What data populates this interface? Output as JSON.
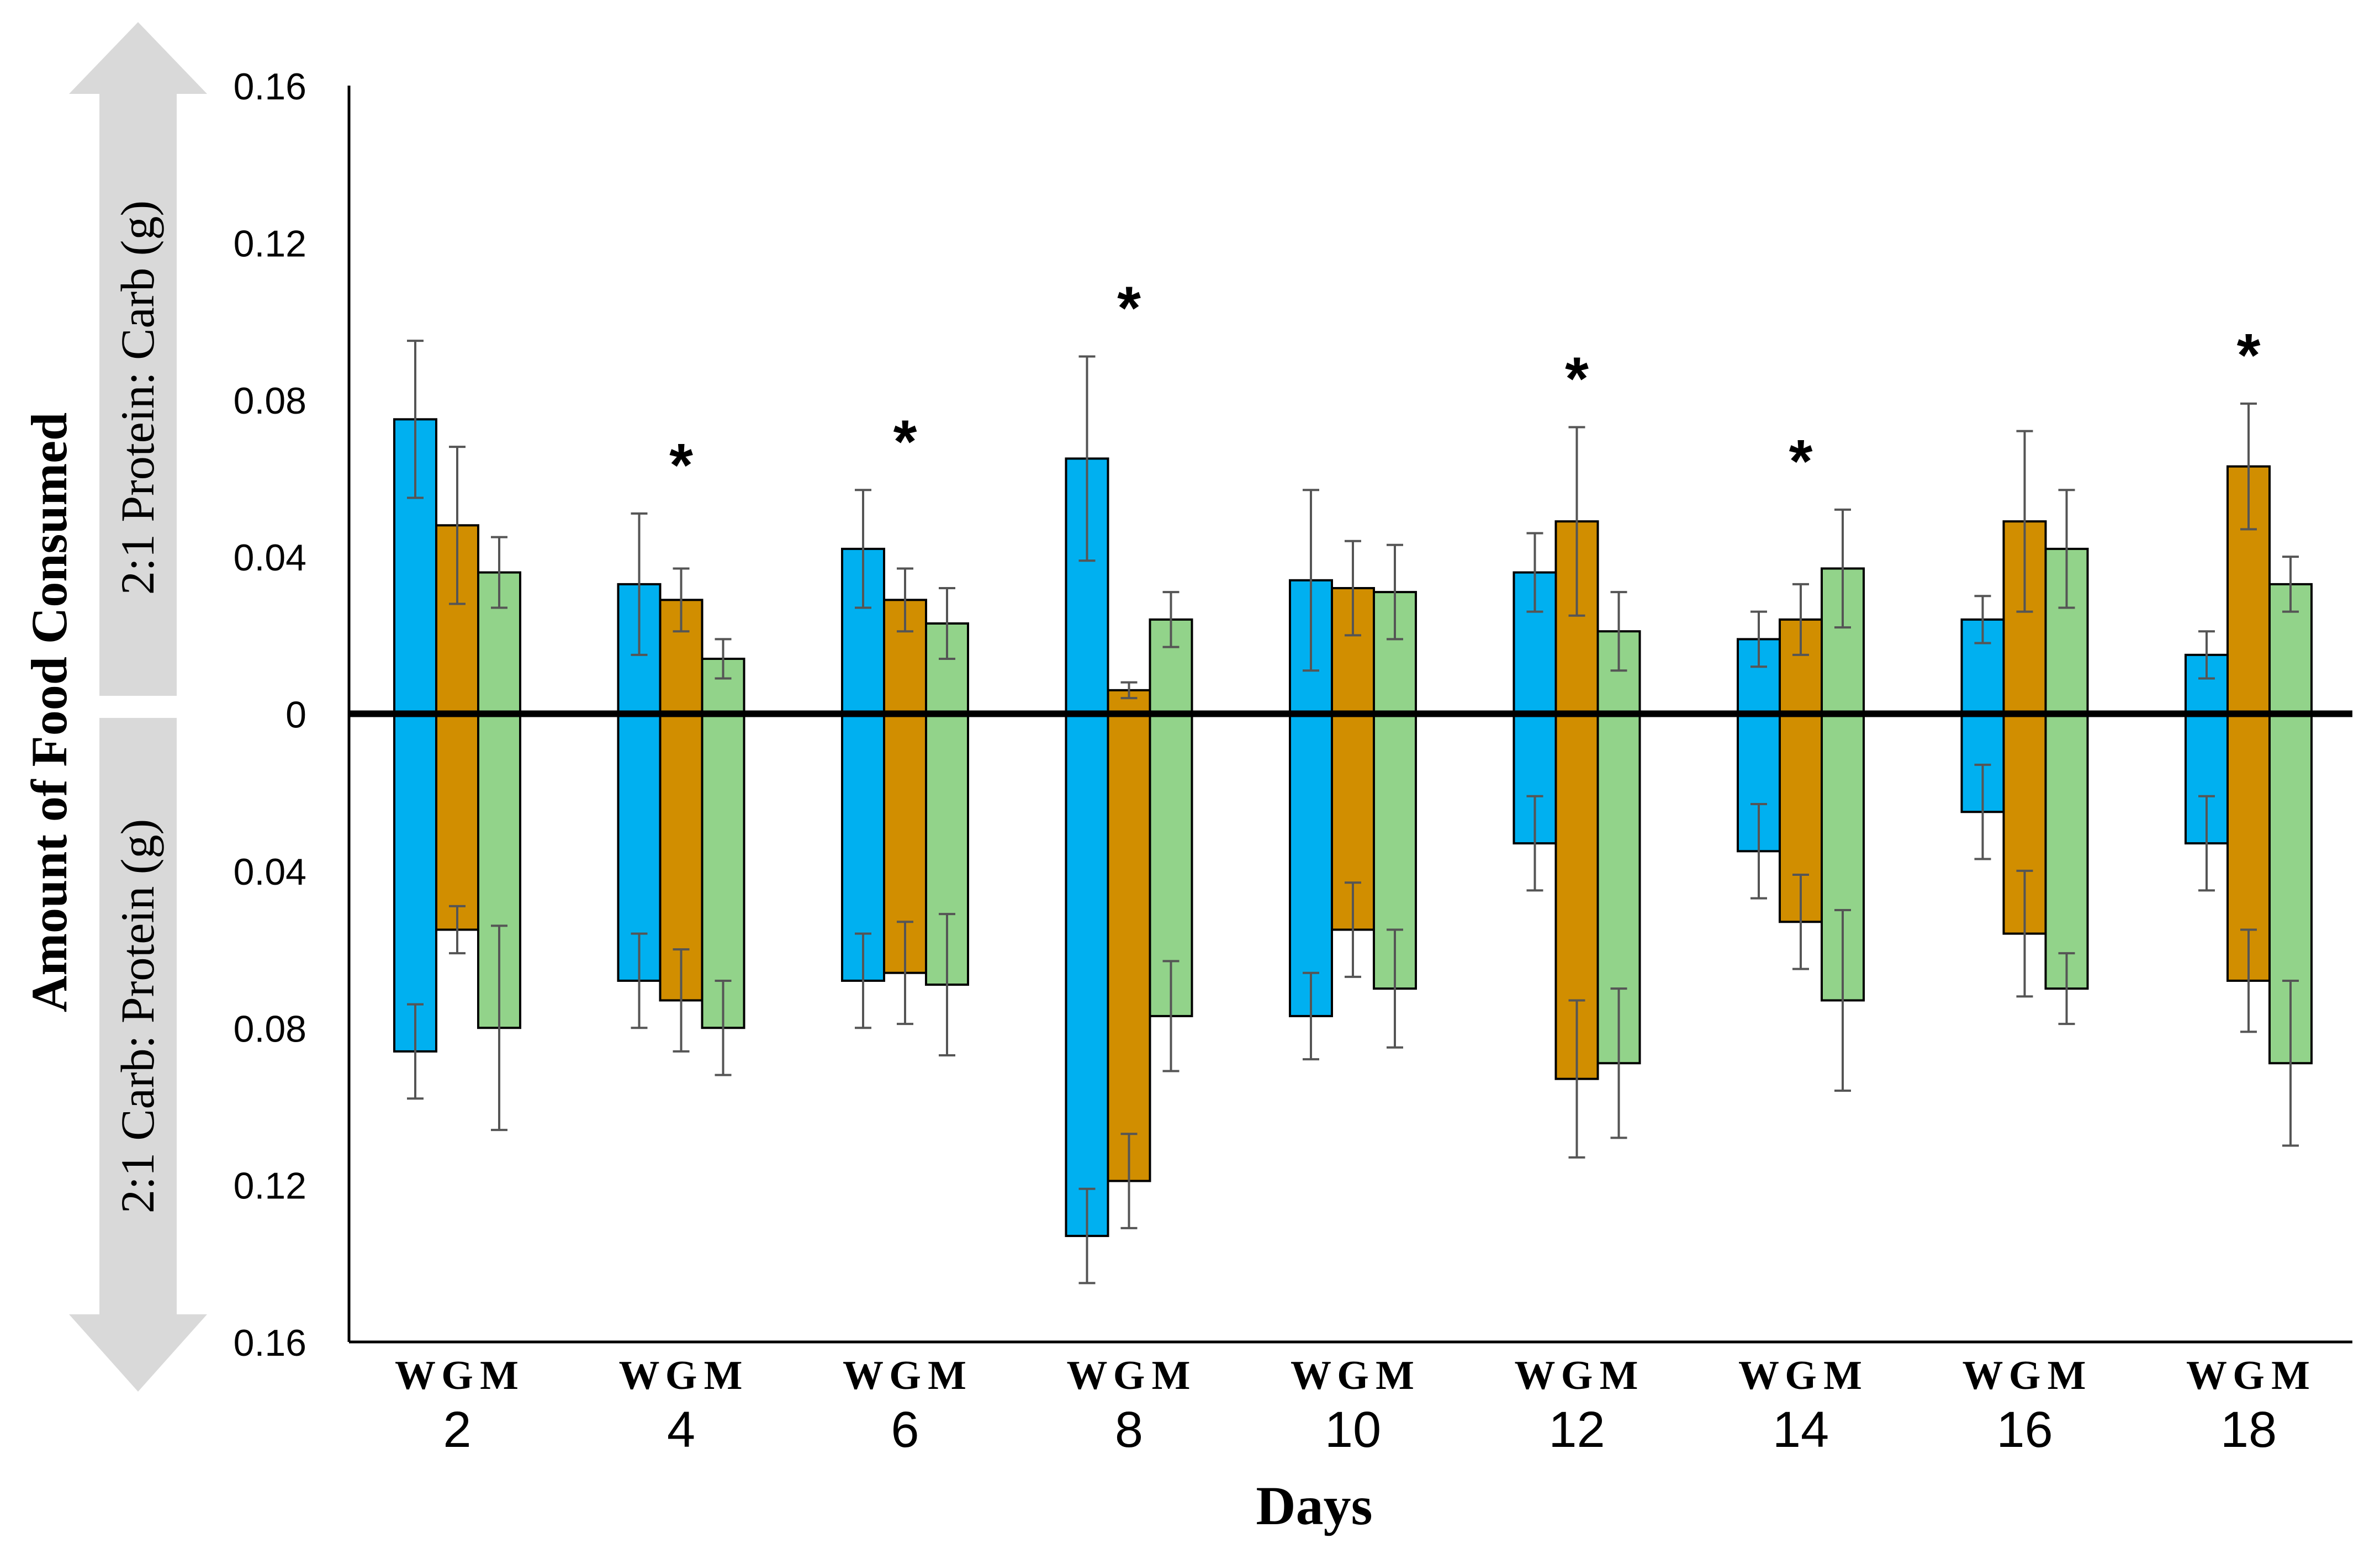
{
  "chart_data": {
    "type": "bar",
    "title": "",
    "xlabel": "Days",
    "ylabel": "Amount of Food Consumed",
    "ylabel_upper": "2:1 Protein: Carb (g)",
    "ylabel_lower": "2:1 Carb: Protein (g)",
    "ylim": [
      -0.16,
      0.16
    ],
    "yticks": [
      {
        "value": 0.16,
        "label": "0.16"
      },
      {
        "value": 0.12,
        "label": "0.12"
      },
      {
        "value": 0.08,
        "label": "0.08"
      },
      {
        "value": 0.04,
        "label": "0.04"
      },
      {
        "value": 0,
        "label": "0"
      },
      {
        "value": -0.04,
        "label": "0.04"
      },
      {
        "value": -0.08,
        "label": "0.08"
      },
      {
        "value": -0.12,
        "label": "0.12"
      },
      {
        "value": -0.16,
        "label": "0.16"
      }
    ],
    "categories": [
      "2",
      "4",
      "6",
      "8",
      "10",
      "12",
      "14",
      "16",
      "18"
    ],
    "group_letters": [
      "W",
      "G",
      "M"
    ],
    "colors": {
      "W": "#00b0f0",
      "G": "#d18e00",
      "M": "#92d38a",
      "outline": "#000000",
      "error": "#555555"
    },
    "significance_marker": "*",
    "significant": [
      false,
      true,
      true,
      true,
      false,
      true,
      true,
      false,
      true
    ],
    "series": [
      {
        "name": "W",
        "upper": [
          0.075,
          0.033,
          0.042,
          0.065,
          0.034,
          0.036,
          0.019,
          0.024,
          0.015
        ],
        "upper_err": [
          0.02,
          0.018,
          0.015,
          0.026,
          0.023,
          0.01,
          0.007,
          0.006,
          0.006
        ],
        "lower": [
          -0.086,
          -0.068,
          -0.068,
          -0.133,
          -0.077,
          -0.033,
          -0.035,
          -0.025,
          -0.033
        ],
        "lower_err": [
          0.012,
          0.012,
          0.012,
          0.012,
          0.011,
          0.012,
          0.012,
          0.012,
          0.012
        ]
      },
      {
        "name": "G",
        "upper": [
          0.048,
          0.029,
          0.029,
          0.006,
          0.032,
          0.049,
          0.024,
          0.049,
          0.063
        ],
        "upper_err": [
          0.02,
          0.008,
          0.008,
          0.002,
          0.012,
          0.024,
          0.009,
          0.023,
          0.016
        ],
        "lower": [
          -0.055,
          -0.073,
          -0.066,
          -0.119,
          -0.055,
          -0.093,
          -0.053,
          -0.056,
          -0.068
        ],
        "lower_err": [
          0.006,
          0.013,
          0.013,
          0.012,
          0.012,
          0.02,
          0.012,
          0.016,
          0.013
        ]
      },
      {
        "name": "M",
        "upper": [
          0.036,
          0.014,
          0.023,
          0.024,
          0.031,
          0.021,
          0.037,
          0.042,
          0.033
        ],
        "upper_err": [
          0.009,
          0.005,
          0.009,
          0.007,
          0.012,
          0.01,
          0.015,
          0.015,
          0.007
        ],
        "lower": [
          -0.08,
          -0.08,
          -0.069,
          -0.077,
          -0.07,
          -0.089,
          -0.073,
          -0.07,
          -0.089
        ],
        "lower_err": [
          0.026,
          0.012,
          0.018,
          0.014,
          0.015,
          0.019,
          0.023,
          0.009,
          0.021
        ]
      }
    ],
    "grid": false,
    "legend": "none"
  }
}
